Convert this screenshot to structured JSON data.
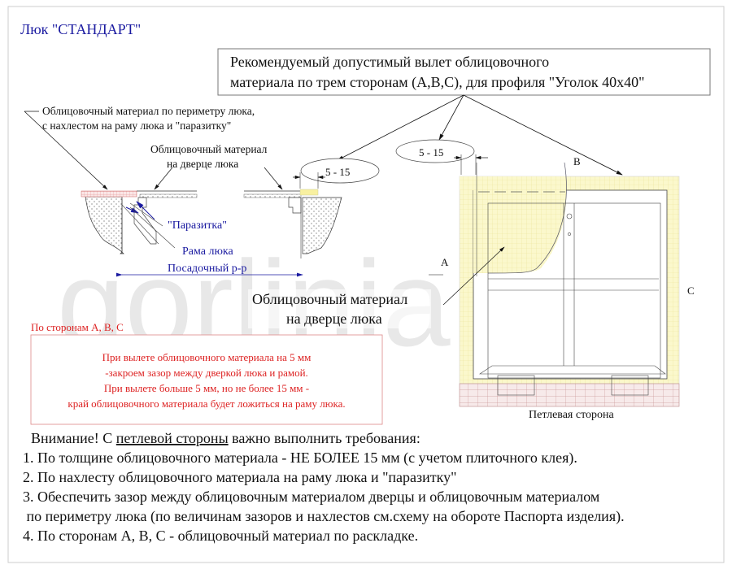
{
  "title": "Люк \"СТАНДАРТ\"",
  "watermark": "gorlinia.ru",
  "callout_box": {
    "line1": "Рекомендуемый допустимый вылет облицовочного",
    "line2": "материала по трем сторонам (А,В,С), для профиля \"Уголок 40х40\""
  },
  "section": {
    "perimeter_label_1": "Облицовочный материал по периметру люка,",
    "perimeter_label_2": "с нахлестом на раму люка и \"паразитку\"",
    "door_label_1": "Облицовочный материал",
    "door_label_2": "на дверце люка",
    "parazitka": "\"Паразитка\"",
    "frame": "Рама люка",
    "fit_size": "Посадочный р-р",
    "gap_dim": "5 - 15"
  },
  "plan": {
    "gap_dim": "5 - 15",
    "side_a": "A",
    "side_b": "B",
    "side_c": "C",
    "door_label_1": "Облицовочный материал",
    "door_label_2": "на дверце люка",
    "hinge_side": "Петлевая сторона"
  },
  "note": {
    "heading": "По сторонам А, В, С",
    "lines": [
      "При вылете облицовочного материала  на 5 мм",
      "-закроем зазор между дверкой люка и рамой.",
      "При вылете больше 5 мм, но не более 15 мм -",
      "край облицовочного материала будет ложиться на раму люка."
    ]
  },
  "requirements": {
    "intro_prefix": "Внимание! С ",
    "intro_underlined": "петлевой стороны",
    "intro_suffix": " важно выполнить требования:",
    "items": [
      "1. По толщине облицовочного материала - НЕ БОЛЕЕ 15 мм (с учетом плиточного клея).",
      "2. По нахлесту облицовочного материала на раму люка и \"паразитку\"",
      "3. Обеспечить зазор между облицовочным материалом дверцы и облицовочным материалом",
      " по периметру люка (по величинам зазоров и нахлестов см.схему на обороте Паспорта изделия).",
      "4. По сторонам А, В, С - облицовочный материал по раскладке."
    ]
  },
  "colors": {
    "title": "#1a1aa0",
    "note": "#dd2222",
    "tile_yellow": "#fbf8c8",
    "tile_pink": "#f3dede"
  }
}
